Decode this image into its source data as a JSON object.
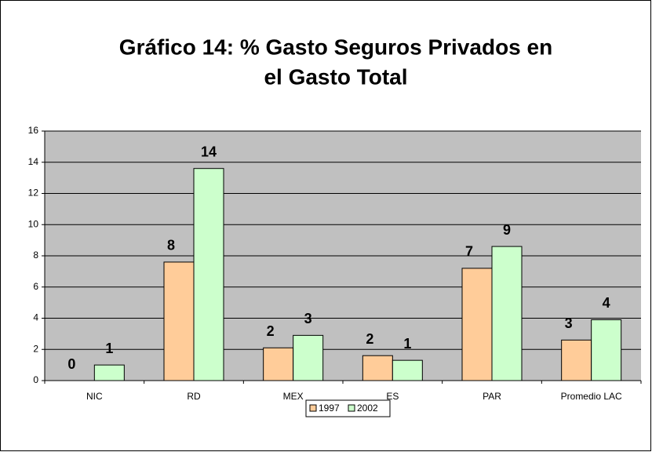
{
  "chart_data": {
    "type": "bar",
    "title": [
      "Gráfico 14: % Gasto Seguros Privados en",
      "el Gasto Total"
    ],
    "categories": [
      "NIC",
      "RD",
      "MEX",
      "ES",
      "PAR",
      "Promedio LAC"
    ],
    "series": [
      {
        "name": "1997",
        "color": "#ffcc99",
        "values": [
          0,
          7.6,
          2.1,
          1.6,
          7.2,
          2.6
        ],
        "value_labels": [
          "0",
          "8",
          "2",
          "2",
          "7",
          "3"
        ]
      },
      {
        "name": "2002",
        "color": "#ccffcc",
        "values": [
          1.0,
          13.6,
          2.9,
          1.3,
          8.6,
          3.9
        ],
        "value_labels": [
          "1",
          "14",
          "3",
          "1",
          "9",
          "4"
        ]
      }
    ],
    "ylim": [
      0,
      16
    ],
    "yticks": [
      0,
      2,
      4,
      6,
      8,
      10,
      12,
      14,
      16
    ],
    "grid": true,
    "legend": "bottom"
  }
}
